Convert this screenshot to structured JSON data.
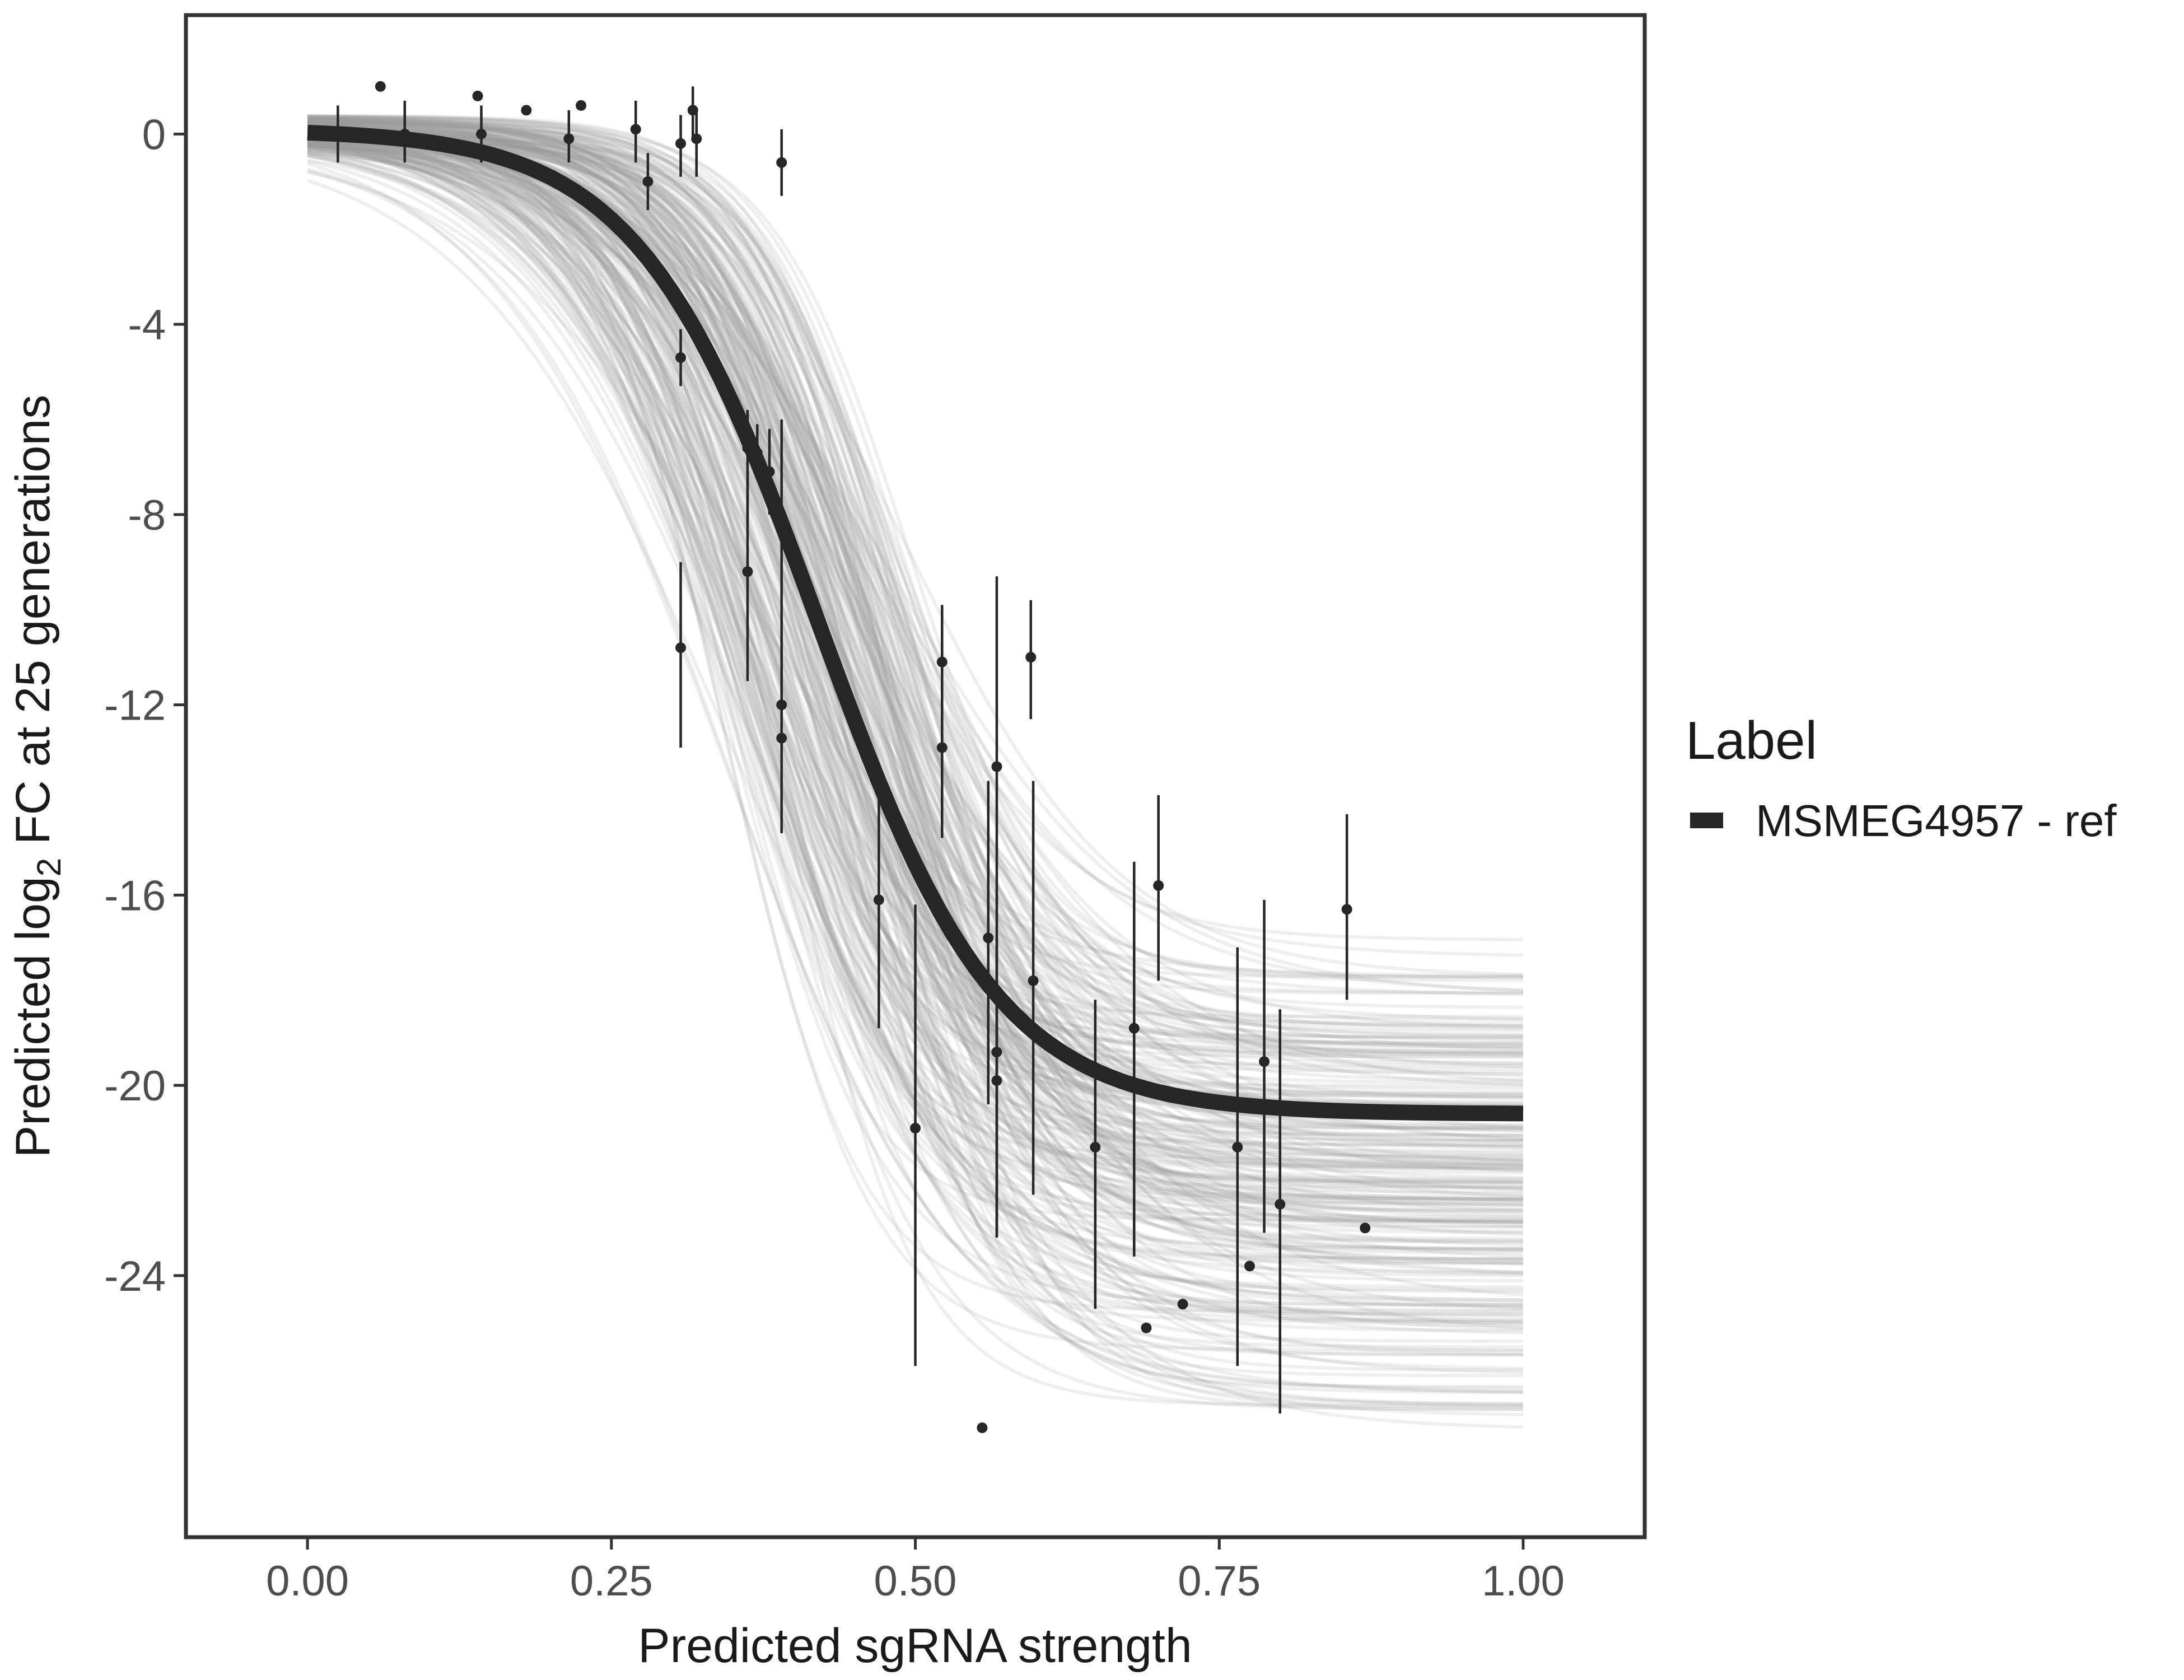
{
  "chart_data": {
    "type": "line",
    "xlabel": "Predicted sgRNA strength",
    "ylabel": {
      "prefix": "Predicted  log",
      "subscript": "2",
      "suffix": " FC at 25 generations"
    },
    "xlim": [
      -0.1,
      1.1
    ],
    "ylim": [
      -29.5,
      2.5
    ],
    "x_ticks": [
      0.0,
      0.25,
      0.5,
      0.75,
      1.0
    ],
    "x_tick_labels": [
      "0.00",
      "0.25",
      "0.50",
      "0.75",
      "1.00"
    ],
    "y_ticks": [
      0,
      -4,
      -8,
      -12,
      -16,
      -20,
      -24
    ],
    "y_tick_labels": [
      "0",
      "-4",
      "-8",
      "-12",
      "-16",
      "-20",
      "-24"
    ],
    "grid": false,
    "legend": {
      "title": "Label",
      "placement": "right",
      "entries": [
        {
          "label": "MSMEG4957 - ref",
          "color": "#262626"
        }
      ]
    },
    "fit_curve": {
      "name": "MSMEG4957 - ref",
      "model": "logistic",
      "top": 0.1,
      "bottom": -20.6,
      "midpoint": 0.42,
      "slope": 13.5,
      "color": "#262626"
    },
    "posterior_band": {
      "color": "#9e9e9e",
      "midpoint_range": [
        0.34,
        0.5
      ],
      "slope_range": [
        9.5,
        18.5
      ],
      "bottom_range": [
        -27.5,
        -16.5
      ]
    },
    "points": [
      {
        "x": 0.025,
        "y": 0.0,
        "lo": -0.6,
        "hi": 0.6
      },
      {
        "x": 0.06,
        "y": 1.0
      },
      {
        "x": 0.08,
        "y": 0.0,
        "lo": -0.6,
        "hi": 0.7
      },
      {
        "x": 0.14,
        "y": 0.8
      },
      {
        "x": 0.143,
        "y": 0.0,
        "lo": -0.6,
        "hi": 0.6
      },
      {
        "x": 0.18,
        "y": 0.5
      },
      {
        "x": 0.215,
        "y": -0.1,
        "lo": -0.6,
        "hi": 0.5
      },
      {
        "x": 0.225,
        "y": 0.6
      },
      {
        "x": 0.27,
        "y": 0.1,
        "lo": -0.6,
        "hi": 0.7
      },
      {
        "x": 0.28,
        "y": -1.0,
        "lo": -1.6,
        "hi": -0.4
      },
      {
        "x": 0.307,
        "y": -0.2,
        "lo": -0.9,
        "hi": 0.4
      },
      {
        "x": 0.317,
        "y": 0.5,
        "lo": -0.1,
        "hi": 1.0
      },
      {
        "x": 0.32,
        "y": -0.1,
        "lo": -0.9,
        "hi": 0.5
      },
      {
        "x": 0.39,
        "y": -0.6,
        "lo": -1.3,
        "hi": 0.1
      },
      {
        "x": 0.307,
        "y": -4.7,
        "lo": -5.3,
        "hi": -4.1
      },
      {
        "x": 0.307,
        "y": -10.8,
        "lo": -12.9,
        "hi": -9.0
      },
      {
        "x": 0.362,
        "y": -6.6,
        "lo": -8.2,
        "hi": -5.8
      },
      {
        "x": 0.362,
        "y": -9.2,
        "lo": -11.5,
        "hi": -7.1
      },
      {
        "x": 0.37,
        "y": -6.7,
        "lo": -7.2,
        "hi": -6.1
      },
      {
        "x": 0.38,
        "y": -7.1,
        "lo": -8.0,
        "hi": -6.2
      },
      {
        "x": 0.39,
        "y": -12.0,
        "lo": -12.8,
        "hi": -6.0
      },
      {
        "x": 0.39,
        "y": -12.7,
        "lo": -14.7,
        "hi": -10.2
      },
      {
        "x": 0.47,
        "y": -16.1,
        "lo": -18.8,
        "hi": -13.3
      },
      {
        "x": 0.5,
        "y": -20.9,
        "lo": -25.9,
        "hi": -16.2
      },
      {
        "x": 0.522,
        "y": -11.1,
        "lo": -13.0,
        "hi": -9.9
      },
      {
        "x": 0.522,
        "y": -12.9,
        "lo": -14.8,
        "hi": -11.0
      },
      {
        "x": 0.555,
        "y": -27.2
      },
      {
        "x": 0.56,
        "y": -16.9,
        "lo": -20.4,
        "hi": -13.6
      },
      {
        "x": 0.567,
        "y": -13.3,
        "lo": -16.2,
        "hi": -9.3
      },
      {
        "x": 0.567,
        "y": -19.3,
        "lo": -23.2,
        "hi": -16.0
      },
      {
        "x": 0.567,
        "y": -19.9,
        "lo": -23.2,
        "hi": -16.9
      },
      {
        "x": 0.595,
        "y": -11.0,
        "lo": -12.3,
        "hi": -9.8
      },
      {
        "x": 0.597,
        "y": -17.8,
        "lo": -22.3,
        "hi": -13.6
      },
      {
        "x": 0.648,
        "y": -21.3,
        "lo": -24.7,
        "hi": -18.2
      },
      {
        "x": 0.68,
        "y": -18.8,
        "lo": -23.6,
        "hi": -15.3
      },
      {
        "x": 0.69,
        "y": -25.1
      },
      {
        "x": 0.7,
        "y": -15.8,
        "lo": -17.8,
        "hi": -13.9
      },
      {
        "x": 0.72,
        "y": -24.6
      },
      {
        "x": 0.765,
        "y": -21.3,
        "lo": -25.9,
        "hi": -17.1
      },
      {
        "x": 0.775,
        "y": -23.8
      },
      {
        "x": 0.787,
        "y": -19.5,
        "lo": -23.1,
        "hi": -16.1
      },
      {
        "x": 0.8,
        "y": -22.5,
        "lo": -26.9,
        "hi": -18.4
      },
      {
        "x": 0.855,
        "y": -16.3,
        "lo": -18.2,
        "hi": -14.3
      },
      {
        "x": 0.87,
        "y": -23.0
      }
    ]
  }
}
